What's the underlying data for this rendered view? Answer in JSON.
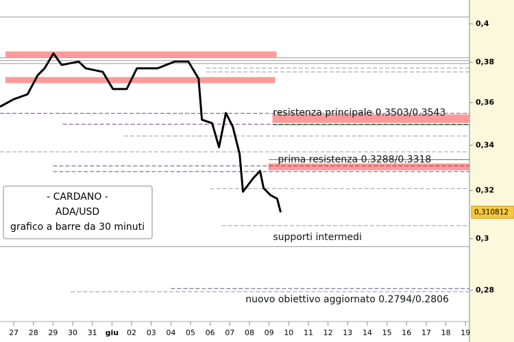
{
  "chart_data": {
    "type": "line",
    "log_scale": true,
    "ylim": [
      0.269,
      0.413
    ],
    "yticks": [
      {
        "value": 0.4,
        "label": "0,4"
      },
      {
        "value": 0.38,
        "label": "0,38"
      },
      {
        "value": 0.36,
        "label": "0,36"
      },
      {
        "value": 0.34,
        "label": "0,34"
      },
      {
        "value": 0.32,
        "label": "0,32"
      },
      {
        "value": 0.3,
        "label": "0,3"
      },
      {
        "value": 0.28,
        "label": "0,28"
      }
    ],
    "xlim": [
      -0.7,
      23.2
    ],
    "xticks": [
      {
        "value": 0,
        "label": "27"
      },
      {
        "value": 1,
        "label": "28"
      },
      {
        "value": 2,
        "label": "29"
      },
      {
        "value": 3,
        "label": "30"
      },
      {
        "value": 4,
        "label": "31"
      },
      {
        "value": 5,
        "label": "giu"
      },
      {
        "value": 6,
        "label": "02"
      },
      {
        "value": 7,
        "label": "03"
      },
      {
        "value": 8,
        "label": "04"
      },
      {
        "value": 9,
        "label": "05"
      },
      {
        "value": 10,
        "label": "06"
      },
      {
        "value": 11,
        "label": "07"
      },
      {
        "value": 12,
        "label": "08"
      },
      {
        "value": 13,
        "label": "09"
      },
      {
        "value": 14,
        "label": "10"
      },
      {
        "value": 15,
        "label": "11"
      },
      {
        "value": 16,
        "label": "12"
      },
      {
        "value": 17,
        "label": "13"
      },
      {
        "value": 18,
        "label": "14"
      },
      {
        "value": 19,
        "label": "15"
      },
      {
        "value": 20,
        "label": "16"
      },
      {
        "value": 21,
        "label": "17"
      },
      {
        "value": 22,
        "label": "18"
      },
      {
        "value": 23,
        "label": "19"
      }
    ],
    "x": [
      -0.7,
      0,
      0.7,
      1.22,
      1.57,
      2.02,
      2.44,
      3.31,
      3.66,
      4.53,
      5.05,
      5.75,
      6.27,
      7.32,
      8.19,
      8.89,
      9.41,
      9.58,
      10.1,
      10.45,
      10.8,
      11.15,
      11.5,
      11.67,
      12.2,
      12.54,
      12.72,
      13.07,
      13.41,
      13.59
    ],
    "series": [
      {
        "color": "#000000",
        "values": [
          0.358,
          0.3616,
          0.364,
          0.3734,
          0.3769,
          0.3845,
          0.3786,
          0.3803,
          0.3769,
          0.3751,
          0.3666,
          0.3666,
          0.3769,
          0.3769,
          0.3803,
          0.3803,
          0.3717,
          0.3518,
          0.3502,
          0.3391,
          0.355,
          0.3486,
          0.336,
          0.3195,
          0.3254,
          0.3285,
          0.321,
          0.318,
          0.3165,
          0.3108
        ]
      }
    ],
    "current_price": {
      "value": 0.310812,
      "label": "0,310812"
    },
    "zones": [
      {
        "from": -0.42,
        "to": 13.38,
        "low": 0.3825,
        "high": 0.3855,
        "color": "#ff9999"
      },
      {
        "from": -0.42,
        "to": 13.31,
        "low": 0.3695,
        "high": 0.3725,
        "color": "#ff9999"
      },
      {
        "from": 13.17,
        "to": 23.2,
        "low": 0.3503,
        "high": 0.3543,
        "color": "#ff9999"
      },
      {
        "from": 12.96,
        "to": 23.2,
        "low": 0.3288,
        "high": 0.3318,
        "color": "#ff9999"
      }
    ],
    "levels": [
      {
        "from": -0.7,
        "value": 0.4037,
        "color": "#999999",
        "dash": false
      },
      {
        "from": -0.7,
        "value": 0.3823,
        "color": "#999999",
        "dash": false
      },
      {
        "from": -0.7,
        "value": 0.3808,
        "color": "#999999",
        "dash": false
      },
      {
        "from": -0.7,
        "value": 0.3793,
        "color": "#999999",
        "dash": false
      },
      {
        "from": 9.8,
        "value": 0.377,
        "color": "#999999",
        "dash": true
      },
      {
        "from": 9.8,
        "value": 0.3751,
        "color": "#999999",
        "dash": true
      },
      {
        "from": -0.7,
        "value": 0.3548,
        "color": "#7a3c8f",
        "dash": true
      },
      {
        "from": 2.5,
        "value": 0.3497,
        "color": "#7a3c8f",
        "dash": true
      },
      {
        "from": 13.2,
        "value": 0.3494,
        "color": "#2e8b2e",
        "dash": false
      },
      {
        "from": 5.6,
        "value": 0.3442,
        "color": "#999999",
        "dash": true
      },
      {
        "from": -0.7,
        "value": 0.337,
        "color": "#999999",
        "dash": true
      },
      {
        "from": 13.0,
        "value": 0.3335,
        "color": "#2e8b2e",
        "dash": false
      },
      {
        "from": 2.0,
        "value": 0.3307,
        "color": "#7a3c8f",
        "dash": true
      },
      {
        "from": 2.0,
        "value": 0.3282,
        "color": "#7a3c8f",
        "dash": true
      },
      {
        "from": 10.0,
        "value": 0.3208,
        "color": "#999999",
        "dash": true
      },
      {
        "from": 10.6,
        "value": 0.3053,
        "color": "#999999",
        "dash": true
      },
      {
        "from": -0.7,
        "value": 0.2968,
        "color": "#999999",
        "dash": false
      },
      {
        "from": 8.0,
        "value": 0.2806,
        "color": "#555577",
        "dash": true
      },
      {
        "from": 2.9,
        "value": 0.2794,
        "color": "#8899bb",
        "dash": true
      }
    ],
    "info_box": [
      "- CARDANO -",
      "ADA/USD",
      "grafico a barre da 30 minuti"
    ],
    "annotations": [
      {
        "text": "resistenza principale 0.3503/0.3543",
        "x": 13.2,
        "value": 0.355
      },
      {
        "text": "prima resistenza 0.3288/0.3318",
        "x": 13.45,
        "value": 0.3335
      },
      {
        "text": "supporti intermedi",
        "x": 13.2,
        "value": 0.3005
      },
      {
        "text": "nuovo obiettivo aggiornato 0.2794/0.2806",
        "x": 11.8,
        "value": 0.2765
      }
    ]
  }
}
